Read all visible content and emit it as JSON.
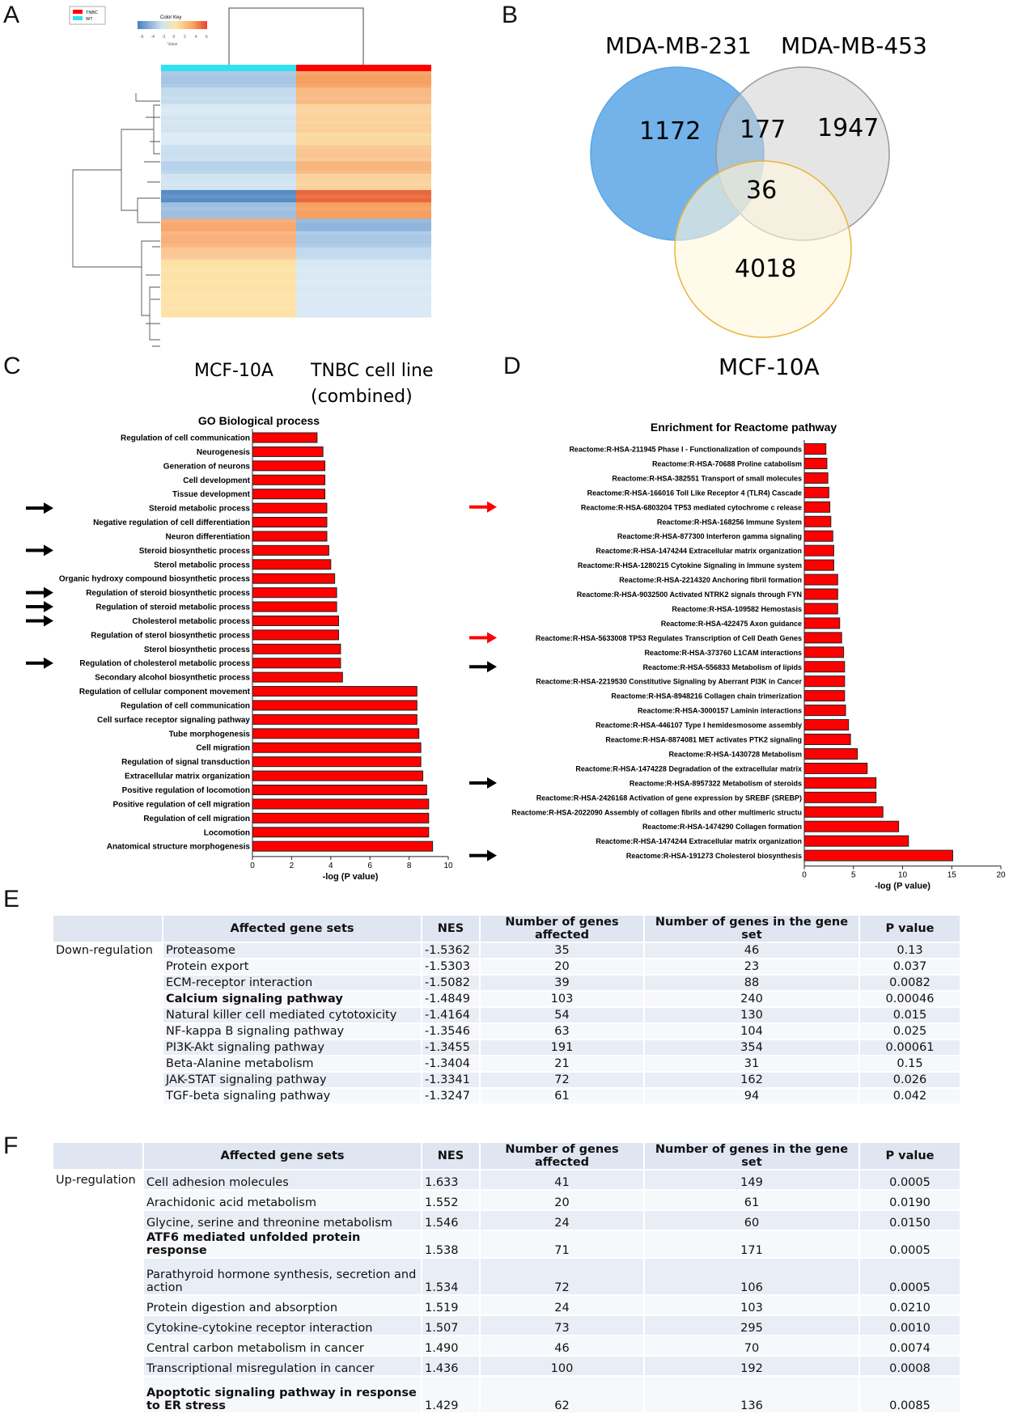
{
  "panels": {
    "A": "A",
    "B": "B",
    "C": "C",
    "D": "D",
    "E": "E",
    "F": "F"
  },
  "heatmap": {
    "legend_items": [
      {
        "label": "TNBC",
        "color": "#ff0000"
      },
      {
        "label": "WT",
        "color": "#33e0f0"
      }
    ],
    "color_key_title": "Color Key",
    "color_key_ticks": [
      "-6",
      "-4",
      "-2",
      "0",
      "2",
      "4",
      "6"
    ],
    "color_key_value_label": "Value",
    "col_labels": [
      "MCF-10A",
      "TNBC cell line",
      "(combined)"
    ],
    "group_colors": {
      "wt": "#33e0f0",
      "tnbc": "#ff0000"
    }
  },
  "venn": {
    "set_labels": [
      "MDA-MB-231",
      "MDA-MB-453",
      "MCF-10A"
    ],
    "counts": {
      "only_231": "1172",
      "231_453": "177",
      "only_453": "1947",
      "all_three": "36",
      "only_10a": "4018"
    },
    "colors": {
      "set1": "#5aa6e6",
      "set2": "#d4d4d4",
      "set3": "#fff5d6",
      "set3_border": "#e8b43a"
    }
  },
  "chart_data": [
    {
      "type": "bar",
      "orientation": "horizontal",
      "title": "GO Biological process",
      "xlabel": "-log (P value)",
      "xlim": [
        0,
        10
      ],
      "xticks": [
        "0",
        "2",
        "4",
        "6",
        "8",
        "10"
      ],
      "bar_color": "#ff0000",
      "categories": [
        "Regulation of cell communication",
        "Neurogenesis",
        "Generation of neurons",
        "Cell development",
        "Tissue development",
        "Steroid metabolic process",
        "Negative regulation of cell differentiation",
        "Neuron differentiation",
        "Steroid biosynthetic process",
        "Sterol metabolic process",
        "Organic hydroxy compound biosynthetic process",
        "Regulation of steroid biosynthetic process",
        "Regulation of steroid metabolic process",
        "Cholesterol metabolic process",
        "Regulation of sterol biosynthetic process",
        "Sterol biosynthetic process",
        "Regulation of cholesterol metabolic process",
        "Secondary alcohol biosynthetic process",
        "Regulation of cellular component movement",
        "Regulation of cell communication",
        "Cell surface receptor signaling pathway",
        "Tube morphogenesis",
        "Cell migration",
        "Regulation of signal transduction",
        "Extracellular matrix organization",
        "Positive regulation of locomotion",
        "Positive regulation of cell migration",
        "Regulation of cell migration",
        "Locomotion",
        "Anatomical structure morphogenesis"
      ],
      "values": [
        3.3,
        3.6,
        3.7,
        3.7,
        3.7,
        3.8,
        3.8,
        3.8,
        3.9,
        4.0,
        4.2,
        4.3,
        4.3,
        4.4,
        4.4,
        4.5,
        4.5,
        4.6,
        8.4,
        8.4,
        8.4,
        8.5,
        8.6,
        8.6,
        8.7,
        8.9,
        9.0,
        9.0,
        9.0,
        9.2
      ],
      "arrows": [
        5,
        8,
        11,
        12,
        13,
        16
      ],
      "arrow_color": "#000000"
    },
    {
      "type": "bar",
      "orientation": "horizontal",
      "title": "Enrichment for Reactome pathway",
      "xlabel": "-log (P value)",
      "xlim": [
        0,
        20
      ],
      "xticks": [
        "0",
        "5",
        "10",
        "15",
        "20"
      ],
      "bar_color": "#ff0000",
      "categories": [
        "Reactome:R-HSA-211945 Phase I - Functionalization of compounds",
        "Reactome:R-HSA-70688 Proline catabolism",
        "Reactome:R-HSA-382551 Transport of small molecules",
        "Reactome:R-HSA-166016 Toll Like Receptor 4 (TLR4) Cascade",
        "Reactome:R-HSA-6803204 TP53 mediated cytochrome c release",
        "Reactome:R-HSA-168256 Immune System",
        "Reactome:R-HSA-877300 Interferon gamma signaling",
        "Reactome:R-HSA-1474244 Extracellular matrix organization",
        "Reactome:R-HSA-1280215 Cytokine Signaling in Immune system",
        "Reactome:R-HSA-2214320 Anchoring fibril formation",
        "Reactome:R-HSA-9032500 Activated NTRK2 signals through FYN",
        "Reactome:R-HSA-109582 Hemostasis",
        "Reactome:R-HSA-422475 Axon guidance",
        "Reactome:R-HSA-5633008 TP53 Regulates Transcription of Cell Death Genes",
        "Reactome:R-HSA-373760 L1CAM interactions",
        "Reactome:R-HSA-556833 Metabolism of lipids",
        "Reactome:R-HSA-2219530 Constitutive Signaling by Aberrant PI3K in Cancer",
        "Reactome:R-HSA-8948216 Collagen chain trimerization",
        "Reactome:R-HSA-3000157 Laminin interactions",
        "Reactome:R-HSA-446107 Type I hemidesmosome assembly",
        "Reactome:R-HSA-8874081 MET activates PTK2 signaling",
        "Reactome:R-HSA-1430728 Metabolism",
        "Reactome:R-HSA-1474228 Degradation of the extracellular matrix",
        "Reactome:R-HSA-8957322 Metabolism of steroids",
        "Reactome:R-HSA-2426168 Activation of gene expression by SREBF (SREBP)",
        "Reactome:R-HSA-2022090 Assembly of collagen fibrils and other multimeric structu",
        "Reactome:R-HSA-1474290 Collagen formation",
        "Reactome:R-HSA-1474244 Extracellular matrix organization",
        "Reactome:R-HSA-191273 Cholesterol biosynthesis"
      ],
      "values": [
        2.2,
        2.3,
        2.4,
        2.5,
        2.6,
        2.7,
        2.9,
        3.0,
        3.0,
        3.4,
        3.4,
        3.4,
        3.6,
        3.8,
        4.0,
        4.1,
        4.1,
        4.1,
        4.2,
        4.5,
        4.7,
        5.4,
        6.4,
        7.3,
        7.3,
        8.0,
        9.6,
        10.6,
        15.1
      ],
      "arrows": [
        4,
        13,
        15,
        23,
        28
      ],
      "arrow_colors": [
        "#ff0000",
        "#ff0000",
        "#000000",
        "#000000",
        "#000000"
      ]
    }
  ],
  "table_e": {
    "headers": [
      "",
      "Affected gene sets",
      "NES",
      "Number of genes affected",
      "Number of genes in the gene set",
      "P value"
    ],
    "group": "Down-regulation",
    "rows": [
      {
        "set": "Proteasome",
        "nes": "-1.5362",
        "affected": "35",
        "total": "46",
        "p": "0.13",
        "bold": false
      },
      {
        "set": "Protein export",
        "nes": "-1.5303",
        "affected": "20",
        "total": "23",
        "p": "0.037",
        "bold": false
      },
      {
        "set": "ECM-receptor interaction",
        "nes": "-1.5082",
        "affected": "39",
        "total": "88",
        "p": "0.0082",
        "bold": false
      },
      {
        "set": "Calcium signaling pathway",
        "nes": "-1.4849",
        "affected": "103",
        "total": "240",
        "p": "0.00046",
        "bold": true
      },
      {
        "set": "Natural killer cell mediated cytotoxicity",
        "nes": "-1.4164",
        "affected": "54",
        "total": "130",
        "p": "0.015",
        "bold": false
      },
      {
        "set": "NF-kappa B signaling pathway",
        "nes": "-1.3546",
        "affected": "63",
        "total": "104",
        "p": "0.025",
        "bold": false
      },
      {
        "set": "PI3K-Akt signaling pathway",
        "nes": "-1.3455",
        "affected": "191",
        "total": "354",
        "p": "0.00061",
        "bold": false
      },
      {
        "set": "Beta-Alanine metabolism",
        "nes": "-1.3404",
        "affected": "21",
        "total": "31",
        "p": "0.15",
        "bold": false
      },
      {
        "set": "JAK-STAT signaling pathway",
        "nes": "-1.3341",
        "affected": "72",
        "total": "162",
        "p": "0.026",
        "bold": false
      },
      {
        "set": "TGF-beta signaling pathway",
        "nes": "-1.3247",
        "affected": "61",
        "total": "94",
        "p": "0.042",
        "bold": false
      }
    ]
  },
  "table_f": {
    "headers": [
      "",
      "Affected gene sets",
      "NES",
      "Number of genes affected",
      "Number of genes in the gene set",
      "P value"
    ],
    "group": "Up-regulation",
    "rows": [
      {
        "set": "Cell adhesion molecules",
        "nes": "1.633",
        "affected": "41",
        "total": "149",
        "p": "0.0005",
        "bold": false
      },
      {
        "set": "Arachidonic acid metabolism",
        "nes": "1.552",
        "affected": "20",
        "total": "61",
        "p": "0.0190",
        "bold": false
      },
      {
        "set": "Glycine, serine and threonine metabolism",
        "nes": "1.546",
        "affected": "24",
        "total": "60",
        "p": "0.0150",
        "bold": false
      },
      {
        "set": "ATF6 mediated unfolded protein response",
        "nes": "1.538",
        "affected": "71",
        "total": "171",
        "p": "0.0005",
        "bold": true
      },
      {
        "set": "Parathyroid hormone synthesis, secretion and action",
        "nes": "1.534",
        "affected": "72",
        "total": "106",
        "p": "0.0005",
        "bold": false
      },
      {
        "set": "Protein digestion and absorption",
        "nes": "1.519",
        "affected": "24",
        "total": "103",
        "p": "0.0210",
        "bold": false
      },
      {
        "set": "Cytokine-cytokine receptor interaction",
        "nes": "1.507",
        "affected": "73",
        "total": "295",
        "p": "0.0010",
        "bold": false
      },
      {
        "set": "Central carbon metabolism in cancer",
        "nes": "1.490",
        "affected": "46",
        "total": "70",
        "p": "0.0074",
        "bold": false
      },
      {
        "set": "Transcriptional misregulation in cancer",
        "nes": "1.436",
        "affected": "100",
        "total": "192",
        "p": "0.0008",
        "bold": false
      },
      {
        "set": "Apoptotic signaling pathway in response to ER stress",
        "nes": "1.429",
        "affected": "62",
        "total": "136",
        "p": "0.0085",
        "bold": true
      }
    ]
  }
}
